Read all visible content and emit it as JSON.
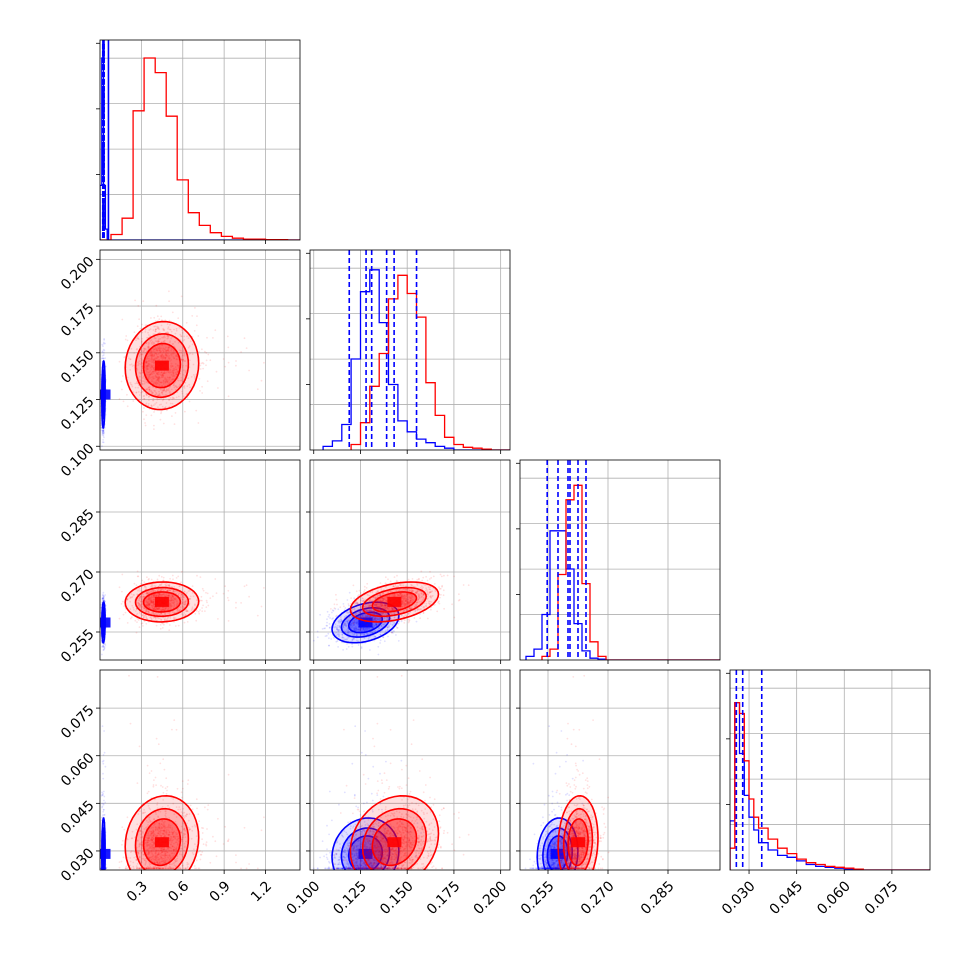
{
  "chart_data": {
    "type": "corner",
    "grid": true,
    "colors": {
      "blue": "#0000ff",
      "red": "#ff0000"
    },
    "params": [
      {
        "range": [
          0.0,
          1.45
        ],
        "ticks": [
          0.3,
          0.6,
          0.9,
          1.2
        ],
        "tick_labels": [
          "0.3",
          "0.6",
          "0.9",
          "1.2"
        ]
      },
      {
        "range": [
          0.098,
          0.205
        ],
        "ticks": [
          0.1,
          0.125,
          0.15,
          0.175,
          0.2
        ],
        "tick_labels": [
          "0.100",
          "0.125",
          "0.150",
          "0.175",
          "0.200"
        ]
      },
      {
        "range": [
          0.248,
          0.298
        ],
        "ticks": [
          0.255,
          0.27,
          0.285
        ],
        "tick_labels": [
          "0.255",
          "0.270",
          "0.285"
        ]
      },
      {
        "range": [
          0.024,
          0.087
        ],
        "ticks": [
          0.03,
          0.045,
          0.06,
          0.075
        ],
        "tick_labels": [
          "0.030",
          "0.045",
          "0.060",
          "0.075"
        ]
      }
    ],
    "series": [
      {
        "color": "blue",
        "means": [
          0.025,
          0.128,
          0.2575,
          0.027
        ],
        "sds": [
          0.006,
          0.009,
          0.0025,
          0.005
        ],
        "corr": [
          [
            0,
            1,
            0.1
          ],
          [
            0,
            2,
            0.1
          ],
          [
            0,
            3,
            0.1
          ],
          [
            1,
            2,
            0.35
          ],
          [
            1,
            3,
            0.15
          ],
          [
            2,
            3,
            0.15
          ]
        ],
        "quantiles": [
          [
            0.021,
            0.024,
            0.029
          ],
          [
            0.119,
            0.128,
            0.139
          ],
          [
            0.2548,
            0.2575,
            0.26
          ],
          [
            0.026,
            0.028,
            0.034
          ]
        ],
        "hist": [
          {
            "edges": [
              0.0,
              0.013,
              0.026,
              0.039,
              0.052
            ],
            "counts": [
              0.3,
              1.0,
              0.3,
              0.06
            ]
          },
          {
            "edges": [
              0.105,
              0.11,
              0.115,
              0.12,
              0.125,
              0.13,
              0.135,
              0.14,
              0.145,
              0.15,
              0.155,
              0.16,
              0.165,
              0.17,
              0.175
            ],
            "counts": [
              0.02,
              0.05,
              0.14,
              0.5,
              0.87,
              0.99,
              0.7,
              0.36,
              0.16,
              0.1,
              0.06,
              0.04,
              0.02,
              0.01
            ]
          },
          {
            "edges": [
              0.2495,
              0.2515,
              0.2535,
              0.2555,
              0.2575,
              0.2595,
              0.2615,
              0.2635,
              0.2655,
              0.2675,
              0.2695
            ],
            "counts": [
              0.02,
              0.06,
              0.25,
              0.71,
              0.71,
              0.5,
              0.2,
              0.05,
              0.01,
              0.005
            ]
          },
          {
            "edges": [
              0.024,
              0.0255,
              0.027,
              0.0285,
              0.03,
              0.0315,
              0.033,
              0.036,
              0.039,
              0.042,
              0.045,
              0.048,
              0.051,
              0.054,
              0.057,
              0.06,
              0.063
            ],
            "counts": [
              0.27,
              0.92,
              0.64,
              0.41,
              0.29,
              0.22,
              0.15,
              0.11,
              0.08,
              0.07,
              0.05,
              0.03,
              0.02,
              0.015,
              0.01,
              0.005
            ]
          }
        ]
      },
      {
        "color": "red",
        "means": [
          0.42,
          0.143,
          0.2625,
          0.031
        ],
        "sds": [
          0.1,
          0.012,
          0.0025,
          0.006
        ],
        "corr": [
          [
            0,
            1,
            0.1
          ],
          [
            0,
            2,
            0.05
          ],
          [
            0,
            3,
            0.25
          ],
          [
            1,
            2,
            0.4
          ],
          [
            1,
            3,
            0.3
          ],
          [
            2,
            3,
            0.15
          ]
        ],
        "quantiles": [
          null,
          [
            0.131,
            0.143,
            0.155
          ],
          [
            0.2605,
            0.2625,
            0.2645
          ],
          null
        ],
        "hist": [
          {
            "edges": [
              0.0,
              0.08,
              0.16,
              0.24,
              0.32,
              0.4,
              0.48,
              0.56,
              0.64,
              0.72,
              0.8,
              0.88,
              0.96,
              1.04,
              1.12,
              1.2,
              1.28,
              1.36
            ],
            "counts": [
              0.0,
              0.03,
              0.12,
              0.71,
              1.0,
              0.92,
              0.68,
              0.33,
              0.15,
              0.08,
              0.04,
              0.02,
              0.01,
              0.005,
              0.005,
              0.002,
              0.002
            ]
          },
          {
            "edges": [
              0.12,
              0.125,
              0.13,
              0.135,
              0.14,
              0.145,
              0.15,
              0.155,
              0.16,
              0.165,
              0.17,
              0.175,
              0.18,
              0.185,
              0.19,
              0.195
            ],
            "counts": [
              0.03,
              0.15,
              0.35,
              0.53,
              0.83,
              0.96,
              0.86,
              0.73,
              0.37,
              0.19,
              0.07,
              0.03,
              0.015,
              0.01,
              0.005
            ]
          },
          {
            "edges": [
              0.2535,
              0.2555,
              0.2575,
              0.2595,
              0.2615,
              0.2635,
              0.2655,
              0.2675,
              0.2695
            ],
            "counts": [
              0.02,
              0.06,
              0.47,
              0.88,
              0.96,
              0.42,
              0.1,
              0.02
            ]
          },
          {
            "edges": [
              0.024,
              0.0255,
              0.027,
              0.0285,
              0.03,
              0.0315,
              0.033,
              0.036,
              0.039,
              0.042,
              0.045,
              0.048,
              0.051,
              0.054,
              0.057,
              0.06,
              0.063,
              0.066
            ],
            "counts": [
              0.12,
              0.92,
              0.86,
              0.6,
              0.39,
              0.29,
              0.23,
              0.17,
              0.12,
              0.09,
              0.06,
              0.04,
              0.03,
              0.02,
              0.015,
              0.01,
              0.005
            ]
          }
        ]
      }
    ]
  }
}
